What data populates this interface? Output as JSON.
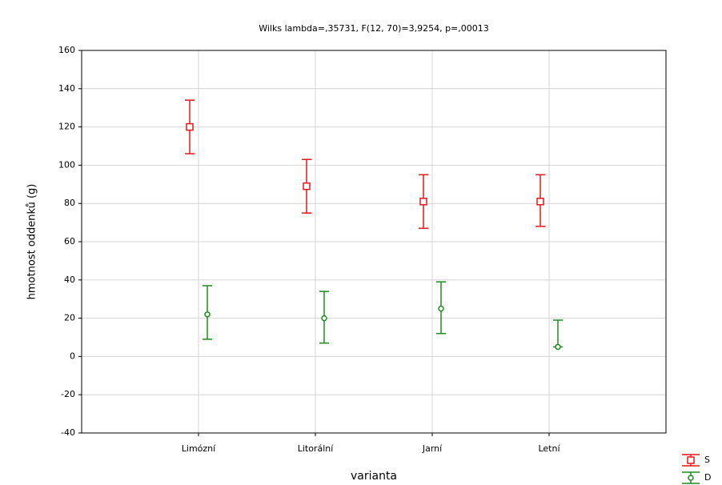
{
  "chart_data": {
    "type": "errorbar",
    "title": "Wilks lambda=,35731, F(12, 70)=3,9254, p=,00013",
    "x_label": "varianta",
    "y_label": "hmotnost oddenků (g)",
    "categories": [
      "Limózní",
      "Litorální",
      "Jarní",
      "Letní"
    ],
    "series": [
      {
        "name": "S",
        "color": "#e8151b",
        "marker": "square",
        "values": [
          120,
          89,
          81,
          81
        ],
        "lower": [
          106,
          75,
          67,
          68
        ],
        "upper": [
          134,
          103,
          95,
          95
        ]
      },
      {
        "name": "D",
        "color": "#1f8a1f",
        "marker": "circle",
        "values": [
          22,
          20,
          25,
          5
        ],
        "lower": [
          9,
          7,
          12,
          5
        ],
        "upper": [
          37,
          34,
          39,
          19
        ]
      }
    ],
    "ylim": [
      -40,
      160
    ],
    "yticks": [
      -40,
      -20,
      0,
      20,
      40,
      60,
      80,
      100,
      120,
      140,
      160
    ],
    "grid": true
  }
}
